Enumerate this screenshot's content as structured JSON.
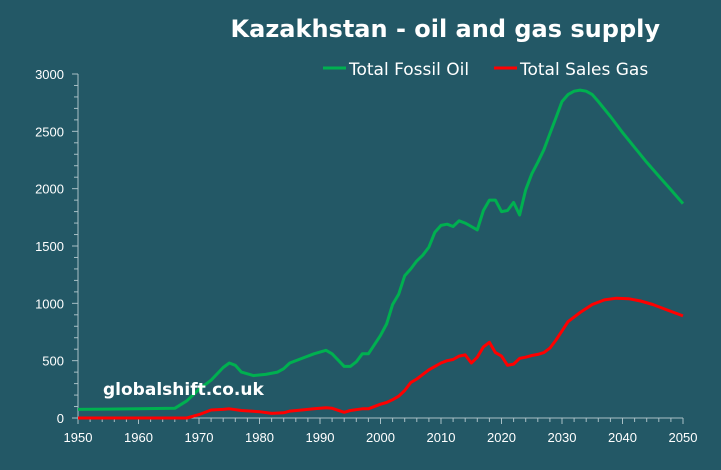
{
  "chart_data": {
    "type": "line",
    "title": "Kazakhstan - oil and gas supply",
    "watermark": "globalshift.co.uk",
    "xlabel": "",
    "ylabel": "",
    "xlim": [
      1950,
      2050
    ],
    "ylim": [
      0,
      3000
    ],
    "x_ticks": [
      1950,
      1960,
      1970,
      1980,
      1990,
      2000,
      2010,
      2020,
      2030,
      2040,
      2050
    ],
    "y_ticks": [
      0,
      500,
      1000,
      1500,
      2000,
      2500,
      3000
    ],
    "grid": false,
    "legend_position": "top-right",
    "series": [
      {
        "name": "Total Fossil Oil",
        "color": "#00b050",
        "points": [
          [
            1950,
            75
          ],
          [
            1955,
            78
          ],
          [
            1960,
            80
          ],
          [
            1966,
            85
          ],
          [
            1968,
            150
          ],
          [
            1970,
            250
          ],
          [
            1972,
            330
          ],
          [
            1974,
            440
          ],
          [
            1975,
            480
          ],
          [
            1976,
            460
          ],
          [
            1977,
            400
          ],
          [
            1979,
            370
          ],
          [
            1981,
            380
          ],
          [
            1983,
            400
          ],
          [
            1984,
            430
          ],
          [
            1985,
            480
          ],
          [
            1987,
            520
          ],
          [
            1989,
            560
          ],
          [
            1991,
            590
          ],
          [
            1992,
            560
          ],
          [
            1994,
            450
          ],
          [
            1995,
            450
          ],
          [
            1996,
            490
          ],
          [
            1997,
            560
          ],
          [
            1998,
            560
          ],
          [
            2000,
            720
          ],
          [
            2001,
            820
          ],
          [
            2002,
            990
          ],
          [
            2003,
            1080
          ],
          [
            2004,
            1240
          ],
          [
            2005,
            1300
          ],
          [
            2006,
            1370
          ],
          [
            2007,
            1420
          ],
          [
            2008,
            1490
          ],
          [
            2009,
            1620
          ],
          [
            2010,
            1680
          ],
          [
            2011,
            1690
          ],
          [
            2012,
            1670
          ],
          [
            2013,
            1720
          ],
          [
            2014,
            1700
          ],
          [
            2015,
            1670
          ],
          [
            2016,
            1640
          ],
          [
            2017,
            1810
          ],
          [
            2018,
            1900
          ],
          [
            2019,
            1900
          ],
          [
            2020,
            1800
          ],
          [
            2021,
            1810
          ],
          [
            2022,
            1880
          ],
          [
            2023,
            1770
          ],
          [
            2024,
            1990
          ],
          [
            2025,
            2130
          ],
          [
            2026,
            2230
          ],
          [
            2027,
            2340
          ],
          [
            2028,
            2480
          ],
          [
            2029,
            2620
          ],
          [
            2030,
            2760
          ],
          [
            2031,
            2820
          ],
          [
            2032,
            2850
          ],
          [
            2033,
            2860
          ],
          [
            2034,
            2850
          ],
          [
            2035,
            2820
          ],
          [
            2036,
            2760
          ],
          [
            2038,
            2630
          ],
          [
            2040,
            2490
          ],
          [
            2042,
            2360
          ],
          [
            2044,
            2230
          ],
          [
            2046,
            2110
          ],
          [
            2048,
            1990
          ],
          [
            2050,
            1870
          ]
        ]
      },
      {
        "name": "Total Sales Gas",
        "color": "#ff0000",
        "points": [
          [
            1950,
            0
          ],
          [
            1960,
            0
          ],
          [
            1968,
            0
          ],
          [
            1970,
            30
          ],
          [
            1972,
            70
          ],
          [
            1974,
            75
          ],
          [
            1975,
            80
          ],
          [
            1977,
            65
          ],
          [
            1980,
            55
          ],
          [
            1982,
            40
          ],
          [
            1984,
            45
          ],
          [
            1985,
            60
          ],
          [
            1987,
            70
          ],
          [
            1989,
            80
          ],
          [
            1991,
            90
          ],
          [
            1992,
            85
          ],
          [
            1994,
            50
          ],
          [
            1995,
            65
          ],
          [
            1997,
            80
          ],
          [
            1998,
            80
          ],
          [
            2000,
            120
          ],
          [
            2001,
            135
          ],
          [
            2002,
            160
          ],
          [
            2003,
            190
          ],
          [
            2004,
            240
          ],
          [
            2005,
            310
          ],
          [
            2006,
            340
          ],
          [
            2007,
            380
          ],
          [
            2008,
            420
          ],
          [
            2009,
            450
          ],
          [
            2010,
            480
          ],
          [
            2011,
            500
          ],
          [
            2012,
            510
          ],
          [
            2013,
            540
          ],
          [
            2014,
            550
          ],
          [
            2015,
            480
          ],
          [
            2016,
            530
          ],
          [
            2017,
            620
          ],
          [
            2018,
            660
          ],
          [
            2019,
            570
          ],
          [
            2020,
            540
          ],
          [
            2021,
            460
          ],
          [
            2022,
            470
          ],
          [
            2023,
            520
          ],
          [
            2024,
            530
          ],
          [
            2025,
            545
          ],
          [
            2026,
            555
          ],
          [
            2027,
            570
          ],
          [
            2028,
            610
          ],
          [
            2029,
            680
          ],
          [
            2030,
            760
          ],
          [
            2031,
            840
          ],
          [
            2032,
            880
          ],
          [
            2033,
            920
          ],
          [
            2035,
            990
          ],
          [
            2037,
            1030
          ],
          [
            2039,
            1045
          ],
          [
            2041,
            1040
          ],
          [
            2043,
            1020
          ],
          [
            2045,
            990
          ],
          [
            2047,
            950
          ],
          [
            2050,
            890
          ]
        ]
      }
    ]
  }
}
